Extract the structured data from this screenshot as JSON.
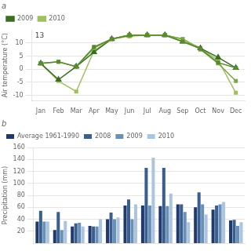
{
  "chart_data": [
    {
      "type": "line",
      "title": "a",
      "categories": [
        "Jan",
        "Feb",
        "Mar",
        "Apr",
        "May",
        "Jun",
        "Jul",
        "Aug",
        "Sep",
        "Oct",
        "Nov",
        "Dec"
      ],
      "series": [
        {
          "color": "#5a8a30",
          "marker": "square",
          "values": [
            2.2,
            2.8,
            1.0,
            8.5,
            11.5,
            13.0,
            13.0,
            13.0,
            10.5,
            7.8,
            2.5,
            0.5
          ]
        },
        {
          "color": "#7aaa45",
          "marker": "square",
          "values": [
            2.2,
            2.8,
            1.0,
            8.0,
            11.5,
            13.0,
            13.0,
            13.0,
            11.5,
            7.5,
            2.2,
            -4.5
          ]
        },
        {
          "name": "2009",
          "color": "#3a6e20",
          "marker": "triangle",
          "values": [
            2.2,
            -4.0,
            1.0,
            6.5,
            11.5,
            13.0,
            13.0,
            13.0,
            10.5,
            8.0,
            4.5,
            0.5
          ]
        },
        {
          "name": "2010",
          "color": "#a0c060",
          "marker": "square",
          "values": [
            2.2,
            -4.5,
            -8.5,
            7.0,
            11.5,
            12.5,
            13.0,
            13.0,
            11.5,
            8.0,
            3.5,
            -9.0
          ]
        }
      ],
      "y_label": "Air temperature (°C)",
      "ylim": [
        -12,
        15
      ],
      "yticks": [
        -10,
        -5,
        0,
        5,
        10
      ],
      "grid": true,
      "legend": "upper left",
      "annotations": [
        "13"
      ]
    },
    {
      "type": "bar",
      "title": "b",
      "categories": [
        null,
        null,
        null,
        null,
        null,
        null,
        null,
        null,
        null,
        null,
        null,
        null
      ],
      "series": [
        {
          "name": "Average 1961-1990",
          "color": "#1f3a6e",
          "values": [
            36,
            22,
            28,
            29,
            40,
            63,
            63,
            62,
            65,
            60,
            56,
            38
          ]
        },
        {
          "name": "2008",
          "color": "#3a5f8e",
          "values": [
            54,
            52,
            33,
            28,
            51,
            73,
            126,
            126,
            65,
            85,
            63,
            39
          ]
        },
        {
          "name": "2009",
          "color": "#6a90b8",
          "values": [
            36,
            22,
            34,
            28,
            40,
            40,
            63,
            62,
            52,
            65,
            65,
            29
          ]
        },
        {
          "name": "2010",
          "color": "#aac5e0",
          "values": [
            36,
            37,
            28,
            40,
            43,
            65,
            143,
            83,
            35,
            48,
            69,
            35
          ]
        }
      ],
      "y_label": "Precipitation (mm)",
      "ylim": [
        0,
        160
      ],
      "yticks": [
        20,
        40,
        60,
        80,
        100,
        120,
        140,
        160
      ],
      "grid": true,
      "legend": "upper left",
      "tick_labels": "y"
    }
  ]
}
